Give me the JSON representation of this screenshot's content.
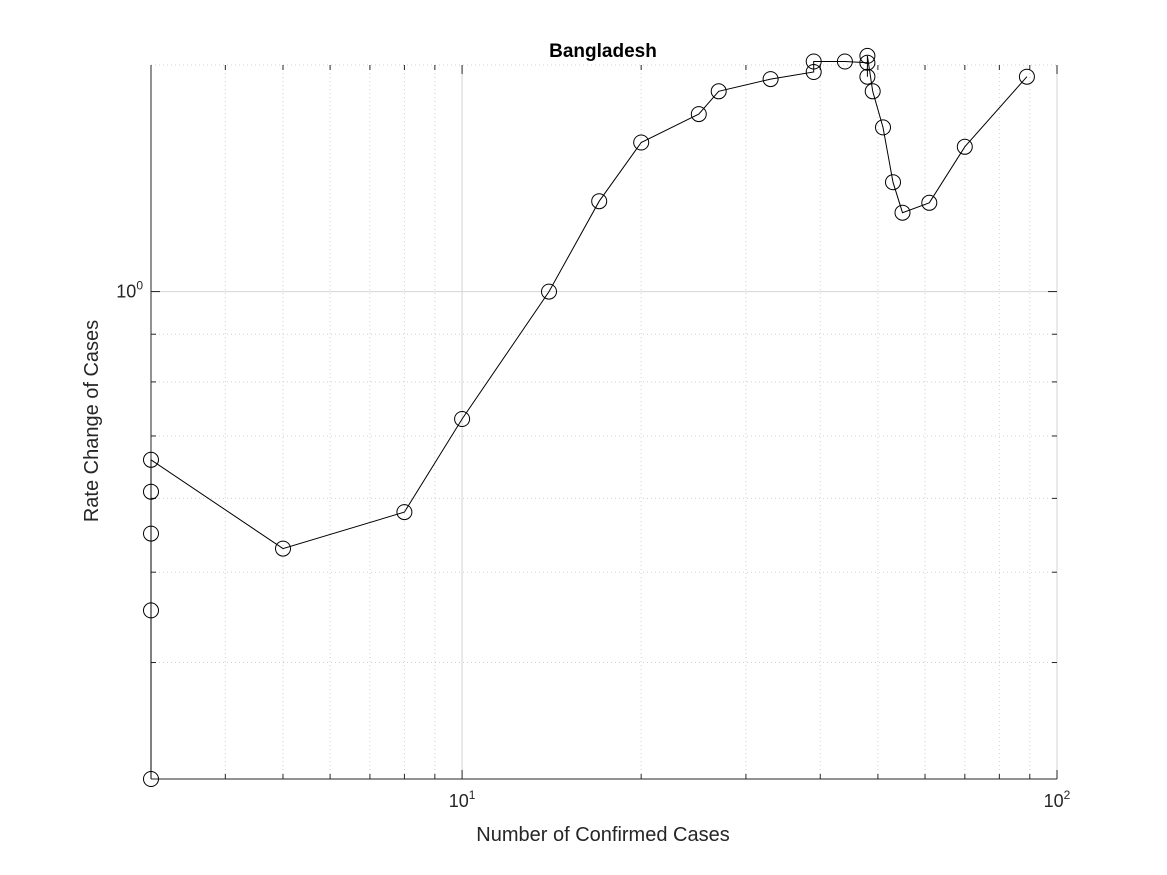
{
  "chart_data": {
    "type": "line",
    "title": "Bangladesh",
    "xlabel": "Number of Confirmed Cases",
    "ylabel": "Rate Change of Cases",
    "x_scale": "log",
    "y_scale": "log",
    "xlim": [
      3,
      100
    ],
    "ylim": [
      0.3,
      1.75
    ],
    "x_ticks": [
      {
        "value": 10,
        "base": "10",
        "exp": "1"
      },
      {
        "value": 100,
        "base": "10",
        "exp": "2"
      }
    ],
    "y_ticks": [
      {
        "value": 1,
        "base": "10",
        "exp": "0"
      }
    ],
    "grid": true,
    "marker": "circle",
    "series": [
      {
        "x": [
          3,
          3,
          3,
          3,
          3,
          5,
          8,
          10,
          14,
          17,
          20,
          25,
          27,
          33,
          39,
          39,
          44,
          48,
          48,
          48,
          49,
          51,
          53,
          55,
          61,
          70,
          89
        ],
        "y": [
          0.3,
          0.455,
          0.55,
          0.61,
          0.66,
          0.53,
          0.58,
          0.73,
          1.0,
          1.25,
          1.445,
          1.55,
          1.64,
          1.69,
          1.72,
          1.765,
          1.765,
          1.76,
          1.7,
          1.79,
          1.64,
          1.5,
          1.31,
          1.215,
          1.245,
          1.43,
          1.7
        ]
      }
    ]
  }
}
